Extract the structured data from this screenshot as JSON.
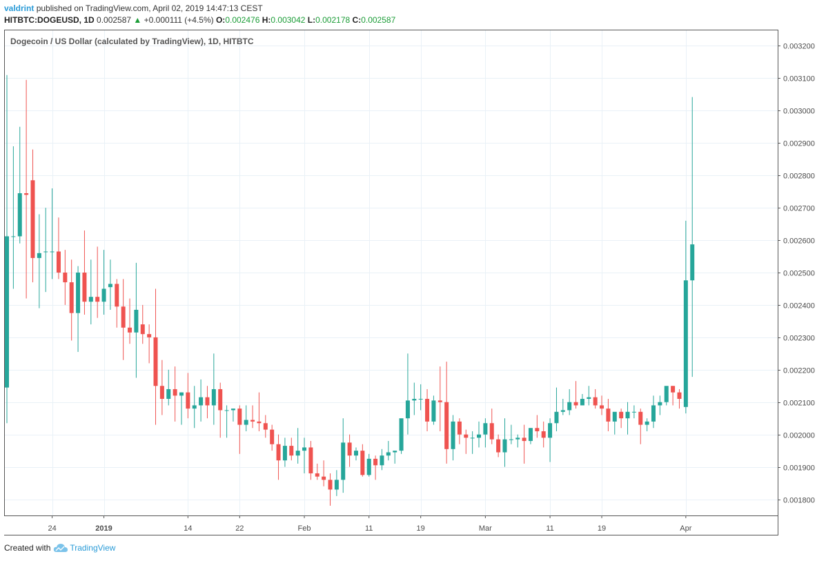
{
  "header": {
    "author": "valdrint",
    "published_text": "published on TradingView.com, April 02, 2019 14:47:13 CEST",
    "symbol": "HITBTC:DOGEUSD, 1D",
    "last_price": "0.002587",
    "change_arrow": "▲",
    "change": "+0.000111 (+4.5%)",
    "o_label": "O:",
    "o_value": "0.002476",
    "h_label": "H:",
    "h_value": "0.003042",
    "l_label": "L:",
    "l_value": "0.002178",
    "c_label": "C:",
    "c_value": "0.002587"
  },
  "footer": {
    "created_with": "Created with",
    "brand": "TradingView"
  },
  "colors": {
    "up": "#26a69a",
    "down": "#ef5350",
    "grid": "#e9f1f7",
    "axis_text": "#4a4a4a",
    "brand": "#2a9bd7"
  },
  "chart_data": {
    "type": "candlestick",
    "title": "Dogecoin / US Dollar (calculated by TradingView), 1D, HITBTC",
    "ylim": [
      0.00175,
      0.00325
    ],
    "y_ticks": [
      "0.001800",
      "0.001900",
      "0.002000",
      "0.002100",
      "0.002200",
      "0.002300",
      "0.002400",
      "0.002500",
      "0.002600",
      "0.002700",
      "0.002800",
      "0.002900",
      "0.003000",
      "0.003100",
      "0.003200"
    ],
    "x_ticks": [
      {
        "label": "24",
        "index": 7
      },
      {
        "label": "2019",
        "index": 15
      },
      {
        "label": "14",
        "index": 28
      },
      {
        "label": "22",
        "index": 36
      },
      {
        "label": "Feb",
        "index": 46
      },
      {
        "label": "11",
        "index": 56
      },
      {
        "label": "19",
        "index": 64
      },
      {
        "label": "Mar",
        "index": 74
      },
      {
        "label": "11",
        "index": 84
      },
      {
        "label": "19",
        "index": 92
      },
      {
        "label": "Apr",
        "index": 105
      }
    ],
    "x_grid_indices": [
      7,
      15,
      28,
      36,
      46,
      56,
      64,
      74,
      84,
      92,
      105
    ],
    "candles": [
      [
        0.002145,
        0.00311,
        0.002035,
        0.002612
      ],
      [
        0.002612,
        0.00289,
        0.00245,
        0.002612
      ],
      [
        0.002612,
        0.00295,
        0.00259,
        0.002745
      ],
      [
        0.002745,
        0.003095,
        0.00242,
        0.00274
      ],
      [
        0.002785,
        0.00288,
        0.00247,
        0.002545
      ],
      [
        0.002545,
        0.00268,
        0.00239,
        0.00256
      ],
      [
        0.002565,
        0.0027,
        0.00244,
        0.002565
      ],
      [
        0.002565,
        0.00276,
        0.00248,
        0.002565
      ],
      [
        0.002565,
        0.00267,
        0.00248,
        0.0025
      ],
      [
        0.0025,
        0.00257,
        0.0024,
        0.00247
      ],
      [
        0.00247,
        0.00254,
        0.00229,
        0.002375
      ],
      [
        0.002375,
        0.00252,
        0.002255,
        0.0025
      ],
      [
        0.0025,
        0.00263,
        0.00237,
        0.00241
      ],
      [
        0.00241,
        0.00254,
        0.00234,
        0.002425
      ],
      [
        0.002425,
        0.00258,
        0.00236,
        0.00241
      ],
      [
        0.00241,
        0.00257,
        0.00237,
        0.00245
      ],
      [
        0.002455,
        0.00254,
        0.002385,
        0.002465
      ],
      [
        0.002465,
        0.00248,
        0.00233,
        0.002395
      ],
      [
        0.002395,
        0.00248,
        0.00223,
        0.00233
      ],
      [
        0.00233,
        0.00242,
        0.00228,
        0.002315
      ],
      [
        0.002315,
        0.00253,
        0.002175,
        0.002385
      ],
      [
        0.00234,
        0.0024,
        0.00228,
        0.00231
      ],
      [
        0.00231,
        0.00234,
        0.00222,
        0.0023
      ],
      [
        0.0023,
        0.00245,
        0.00203,
        0.00215
      ],
      [
        0.00215,
        0.00223,
        0.00206,
        0.00211
      ],
      [
        0.00211,
        0.0022,
        0.00209,
        0.00214
      ],
      [
        0.00214,
        0.00221,
        0.00204,
        0.00212
      ],
      [
        0.00212,
        0.00213,
        0.00203,
        0.00213
      ],
      [
        0.00213,
        0.00219,
        0.00205,
        0.00208
      ],
      [
        0.00208,
        0.00215,
        0.00202,
        0.00209
      ],
      [
        0.00209,
        0.00217,
        0.00204,
        0.002115
      ],
      [
        0.002115,
        0.00215,
        0.00205,
        0.00209
      ],
      [
        0.00209,
        0.00225,
        0.00203,
        0.00214
      ],
      [
        0.00214,
        0.00216,
        0.00199,
        0.002075
      ],
      [
        0.002075,
        0.00209,
        0.00199,
        0.002075
      ],
      [
        0.002075,
        0.00208,
        0.00204,
        0.00208
      ],
      [
        0.00208,
        0.00209,
        0.00194,
        0.00203
      ],
      [
        0.00203,
        0.00209,
        0.00201,
        0.002045
      ],
      [
        0.002045,
        0.00209,
        0.00202,
        0.00204
      ],
      [
        0.00204,
        0.00213,
        0.00201,
        0.002035
      ],
      [
        0.002035,
        0.00206,
        0.00199,
        0.002015
      ],
      [
        0.002015,
        0.00203,
        0.00195,
        0.00197
      ],
      [
        0.00197,
        0.002,
        0.00186,
        0.00192
      ],
      [
        0.00192,
        0.00199,
        0.0019,
        0.001965
      ],
      [
        0.001965,
        0.00199,
        0.00192,
        0.001935
      ],
      [
        0.001935,
        0.00202,
        0.00191,
        0.00195
      ],
      [
        0.00195,
        0.00199,
        0.00188,
        0.00196
      ],
      [
        0.00196,
        0.00198,
        0.00186,
        0.00188
      ],
      [
        0.00188,
        0.00191,
        0.00186,
        0.00187
      ],
      [
        0.00187,
        0.00192,
        0.00184,
        0.00186
      ],
      [
        0.00186,
        0.00188,
        0.00178,
        0.00183
      ],
      [
        0.00183,
        0.00189,
        0.00181,
        0.00186
      ],
      [
        0.00186,
        0.00205,
        0.00182,
        0.001975
      ],
      [
        0.001975,
        0.002,
        0.0019,
        0.001935
      ],
      [
        0.001935,
        0.00196,
        0.00192,
        0.00195
      ],
      [
        0.00195,
        0.00197,
        0.00187,
        0.001875
      ],
      [
        0.001875,
        0.00194,
        0.00187,
        0.001925
      ],
      [
        0.001925,
        0.001935,
        0.00186,
        0.001905
      ],
      [
        0.001905,
        0.001955,
        0.00189,
        0.001935
      ],
      [
        0.001935,
        0.00198,
        0.00192,
        0.001945
      ],
      [
        0.001945,
        0.00195,
        0.00191,
        0.00195
      ],
      [
        0.00195,
        0.00204,
        0.00194,
        0.00205
      ],
      [
        0.00205,
        0.00225,
        0.002,
        0.002105
      ],
      [
        0.002105,
        0.00216,
        0.00206,
        0.00211
      ],
      [
        0.00211,
        0.002155,
        0.002075,
        0.00211
      ],
      [
        0.00211,
        0.00214,
        0.00201,
        0.00204
      ],
      [
        0.00204,
        0.00212,
        0.00203,
        0.002105
      ],
      [
        0.002105,
        0.00221,
        0.00201,
        0.0021
      ],
      [
        0.0021,
        0.002225,
        0.00191,
        0.001955
      ],
      [
        0.001955,
        0.00206,
        0.00192,
        0.00204
      ],
      [
        0.00204,
        0.00205,
        0.00197,
        0.002
      ],
      [
        0.002,
        0.002015,
        0.00194,
        0.00199
      ],
      [
        0.00199,
        0.00201,
        0.00194,
        0.00199
      ],
      [
        0.00199,
        0.00204,
        0.00196,
        0.002
      ],
      [
        0.002,
        0.00205,
        0.00196,
        0.002035
      ],
      [
        0.002035,
        0.00208,
        0.00197,
        0.001985
      ],
      [
        0.001985,
        0.002,
        0.00193,
        0.001945
      ],
      [
        0.001945,
        0.00205,
        0.0019,
        0.001985
      ],
      [
        0.001985,
        0.00203,
        0.00197,
        0.001985
      ],
      [
        0.001985,
        0.002,
        0.00196,
        0.00199
      ],
      [
        0.00199,
        0.00203,
        0.00191,
        0.00198
      ],
      [
        0.00198,
        0.00202,
        0.00197,
        0.00202
      ],
      [
        0.00202,
        0.00206,
        0.00199,
        0.00201
      ],
      [
        0.00201,
        0.00204,
        0.00196,
        0.00199
      ],
      [
        0.00199,
        0.00205,
        0.001915,
        0.002035
      ],
      [
        0.002035,
        0.002145,
        0.00201,
        0.00207
      ],
      [
        0.00207,
        0.00211,
        0.00206,
        0.002075
      ],
      [
        0.002075,
        0.00214,
        0.00206,
        0.0021
      ],
      [
        0.0021,
        0.002165,
        0.00208,
        0.00209
      ],
      [
        0.00209,
        0.002125,
        0.00209,
        0.00211
      ],
      [
        0.00211,
        0.00215,
        0.00209,
        0.002115
      ],
      [
        0.002115,
        0.00214,
        0.00208,
        0.00209
      ],
      [
        0.00209,
        0.00212,
        0.00206,
        0.00208
      ],
      [
        0.00208,
        0.00211,
        0.00201,
        0.00204
      ],
      [
        0.00204,
        0.00206,
        0.002,
        0.00207
      ],
      [
        0.00207,
        0.00208,
        0.00202,
        0.00205
      ],
      [
        0.00205,
        0.0021,
        0.002,
        0.00207
      ],
      [
        0.00207,
        0.00209,
        0.00205,
        0.00207
      ],
      [
        0.00207,
        0.00208,
        0.00197,
        0.00203
      ],
      [
        0.00203,
        0.00205,
        0.00201,
        0.00204
      ],
      [
        0.00204,
        0.00212,
        0.00202,
        0.00209
      ],
      [
        0.00209,
        0.00212,
        0.00206,
        0.0021
      ],
      [
        0.0021,
        0.00214,
        0.00209,
        0.00215
      ],
      [
        0.00215,
        0.00215,
        0.00209,
        0.00213
      ],
      [
        0.00213,
        0.00214,
        0.00208,
        0.00211
      ],
      [
        0.002085,
        0.00266,
        0.002065,
        0.002476
      ],
      [
        0.002476,
        0.003042,
        0.002178,
        0.002587
      ]
    ]
  }
}
